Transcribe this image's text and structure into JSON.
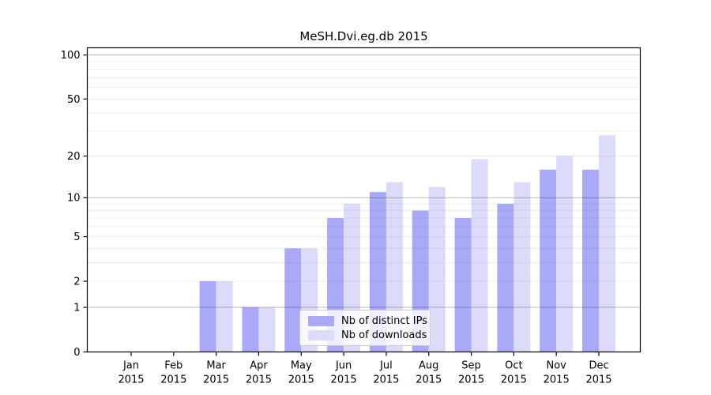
{
  "chart_data": {
    "type": "bar",
    "title": "MeSH.Dvi.eg.db 2015",
    "categories": [
      "Jan 2015",
      "Feb 2015",
      "Mar 2015",
      "Apr 2015",
      "May 2015",
      "Jun 2015",
      "Jul 2015",
      "Aug 2015",
      "Sep 2015",
      "Oct 2015",
      "Nov 2015",
      "Dec 2015"
    ],
    "series": [
      {
        "name": "Nb of distinct IPs",
        "color": "#a9a9f7",
        "values": [
          0,
          0,
          2,
          1,
          4,
          7,
          11,
          8,
          7,
          9,
          16,
          16
        ]
      },
      {
        "name": "Nb of downloads",
        "color": "#dcdcfa",
        "values": [
          0,
          0,
          2,
          1,
          4,
          9,
          13,
          12,
          19,
          13,
          20,
          28
        ]
      }
    ],
    "xlabel": "",
    "ylabel": "",
    "yscale": "log1p",
    "ylim": [
      0,
      112
    ],
    "ytick_values": [
      0,
      1,
      2,
      5,
      10,
      20,
      50,
      100
    ],
    "grid_major_values": [
      1,
      10,
      100
    ],
    "grid_minor_values": [
      2,
      3,
      4,
      5,
      6,
      7,
      8,
      9,
      20,
      30,
      40,
      50,
      60,
      70,
      80,
      90
    ],
    "grid": true,
    "legend_position": "inside-bottom-center"
  }
}
